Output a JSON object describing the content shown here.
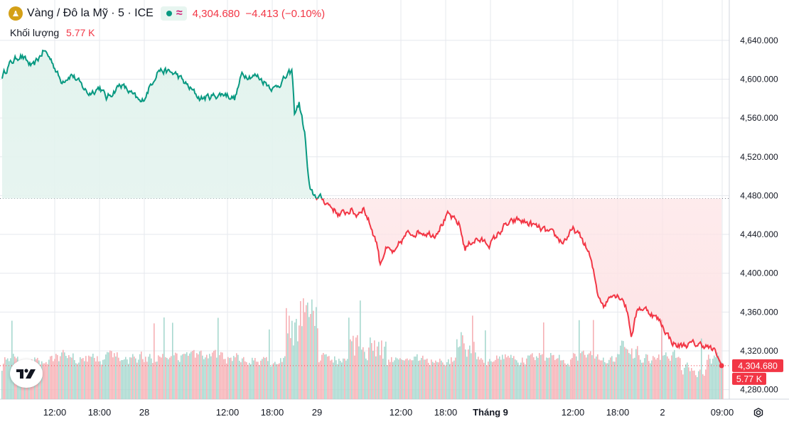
{
  "header": {
    "symbol_title": "Vàng / Đô la Mỹ · 5 · ICE",
    "last_price": "4,304.680",
    "change": "−4.413 (−0.10%)",
    "market_status_icon": "market-open-dot-icon",
    "wave_icon": "approx-wave-icon"
  },
  "volume": {
    "label": "Khối lượng",
    "value": "5.77 K"
  },
  "price_tag": {
    "price": "4,304.680",
    "volume": "5.77 K"
  },
  "colors": {
    "up": "#089981",
    "down": "#f23645",
    "up_fill": "#e3f3ee",
    "down_fill": "#fde3e5",
    "vol_up": "#a7d8cf",
    "vol_down": "#f6b0b5",
    "grid": "#e6e8ee"
  },
  "chart_data": {
    "type": "area",
    "title": "Vàng / Đô la Mỹ · 5 · ICE",
    "baseline": 4477,
    "ylim": [
      4262,
      4668
    ],
    "y_ticks": [
      "4,640.000",
      "4,600.000",
      "4,560.000",
      "4,520.000",
      "4,480.000",
      "4,440.000",
      "4,400.000",
      "4,360.000",
      "4,320.000",
      "4,280.000"
    ],
    "x_ticks": [
      "12:00",
      "18:00",
      "28",
      "12:00",
      "18:00",
      "29",
      "12:00",
      "18:00",
      "Tháng 9",
      "12:00",
      "18:00",
      "2",
      "09:00"
    ],
    "grid": true,
    "anchors": [
      [
        0,
        4603
      ],
      [
        0.5,
        4615
      ],
      [
        1.3,
        4625
      ],
      [
        2.2,
        4612
      ],
      [
        3.0,
        4630
      ],
      [
        3.6,
        4618
      ],
      [
        4.2,
        4598
      ],
      [
        5.0,
        4605
      ],
      [
        6.2,
        4585
      ],
      [
        7.0,
        4592
      ],
      [
        7.5,
        4580
      ],
      [
        8.5,
        4595
      ],
      [
        10.0,
        4575
      ],
      [
        11.2,
        4610
      ],
      [
        12.5,
        4605
      ],
      [
        13.5,
        4590
      ],
      [
        14.2,
        4580
      ],
      [
        16.0,
        4585
      ],
      [
        16.7,
        4580
      ],
      [
        17.2,
        4605
      ],
      [
        18.3,
        4603
      ],
      [
        19.5,
        4590
      ],
      [
        20.8,
        4608
      ],
      [
        20.96,
        4565
      ],
      [
        21.3,
        4575
      ],
      [
        21.7,
        4545
      ],
      [
        21.95,
        4500
      ],
      [
        22.1,
        4483
      ],
      [
        22.4,
        4480
      ],
      [
        22.9,
        4477
      ],
      [
        23.5,
        4470
      ],
      [
        24.2,
        4460
      ],
      [
        25.0,
        4465
      ],
      [
        25.4,
        4460
      ],
      [
        25.9,
        4468
      ],
      [
        26.4,
        4450
      ],
      [
        26.9,
        4430
      ],
      [
        27.1,
        4410
      ],
      [
        27.5,
        4425
      ],
      [
        28.2,
        4420
      ],
      [
        28.5,
        4430
      ],
      [
        29.0,
        4440
      ],
      [
        30.0,
        4443
      ],
      [
        31.0,
        4440
      ],
      [
        32.0,
        4460
      ],
      [
        32.8,
        4450
      ],
      [
        33.2,
        4425
      ],
      [
        33.6,
        4432
      ],
      [
        34.0,
        4435
      ],
      [
        35.0,
        4430
      ],
      [
        36.0,
        4448
      ],
      [
        37.0,
        4455
      ],
      [
        38.0,
        4450
      ],
      [
        38.7,
        4445
      ],
      [
        39.5,
        4440
      ],
      [
        40.2,
        4432
      ],
      [
        41.0,
        4445
      ],
      [
        41.6,
        4435
      ],
      [
        42.1,
        4420
      ],
      [
        42.5,
        4395
      ],
      [
        42.7,
        4380
      ],
      [
        43.2,
        4366
      ],
      [
        43.7,
        4380
      ],
      [
        44.5,
        4375
      ],
      [
        44.85,
        4360
      ],
      [
        45.15,
        4335
      ],
      [
        45.6,
        4365
      ],
      [
        46.3,
        4362
      ],
      [
        47.2,
        4350
      ],
      [
        48.0,
        4330
      ],
      [
        48.4,
        4325
      ],
      [
        49.5,
        4327
      ],
      [
        50.4,
        4326
      ],
      [
        51.2,
        4318
      ],
      [
        51.6,
        4304.68
      ]
    ],
    "ohlc": {
      "day_1": {
        "open": 4603,
        "high": 4630,
        "low": 4575,
        "close": 4608
      },
      "day_2": {
        "open": 4608,
        "high": 4610,
        "low": 4410,
        "close": 4440
      },
      "day_3": {
        "open": 4440,
        "high": 4460,
        "low": 4304.68,
        "close": 4304.68
      }
    }
  }
}
